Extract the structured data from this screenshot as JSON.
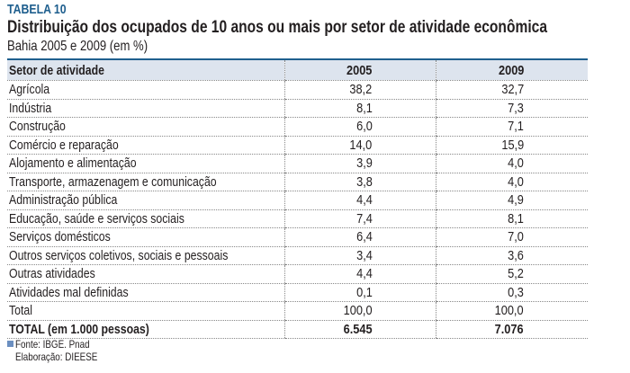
{
  "tag": "TABELA 10",
  "title": "Distribuição dos ocupados de 10 anos ou mais por setor de atividade econômica",
  "subtitle": "Bahia 2005 e 2009 (em %)",
  "headers": [
    "Setor de atividade",
    "2005",
    "2009"
  ],
  "rows": [
    [
      "Agrícola",
      "38,2",
      "32,7"
    ],
    [
      "Indústria",
      "8,1",
      "7,3"
    ],
    [
      "Construção",
      "6,0",
      "7,1"
    ],
    [
      "Comércio e reparação",
      "14,0",
      "15,9"
    ],
    [
      "Alojamento e alimentação",
      "3,9",
      "4,0"
    ],
    [
      "Transporte, armazenagem e comunicação",
      "3,8",
      "4,0"
    ],
    [
      "Administração pública",
      "4,4",
      "4,9"
    ],
    [
      "Educação, saúde e serviços sociais",
      "7,4",
      "8,1"
    ],
    [
      "Serviços domésticos",
      "6,4",
      "7,0"
    ],
    [
      "Outros serviços coletivos, sociais e pessoais",
      "3,4",
      "3,6"
    ],
    [
      "Outras atividades",
      "4,4",
      "5,2"
    ],
    [
      "Atividades mal definidas",
      "0,1",
      "0,3"
    ],
    [
      "Total",
      "100,0",
      "100,0"
    ],
    [
      "TOTAL (em 1.000 pessoas)",
      "6.545",
      "7.076"
    ]
  ],
  "source": "Fonte: IBGE. Pnad",
  "elaboration": "Elaboração: DIEESE"
}
